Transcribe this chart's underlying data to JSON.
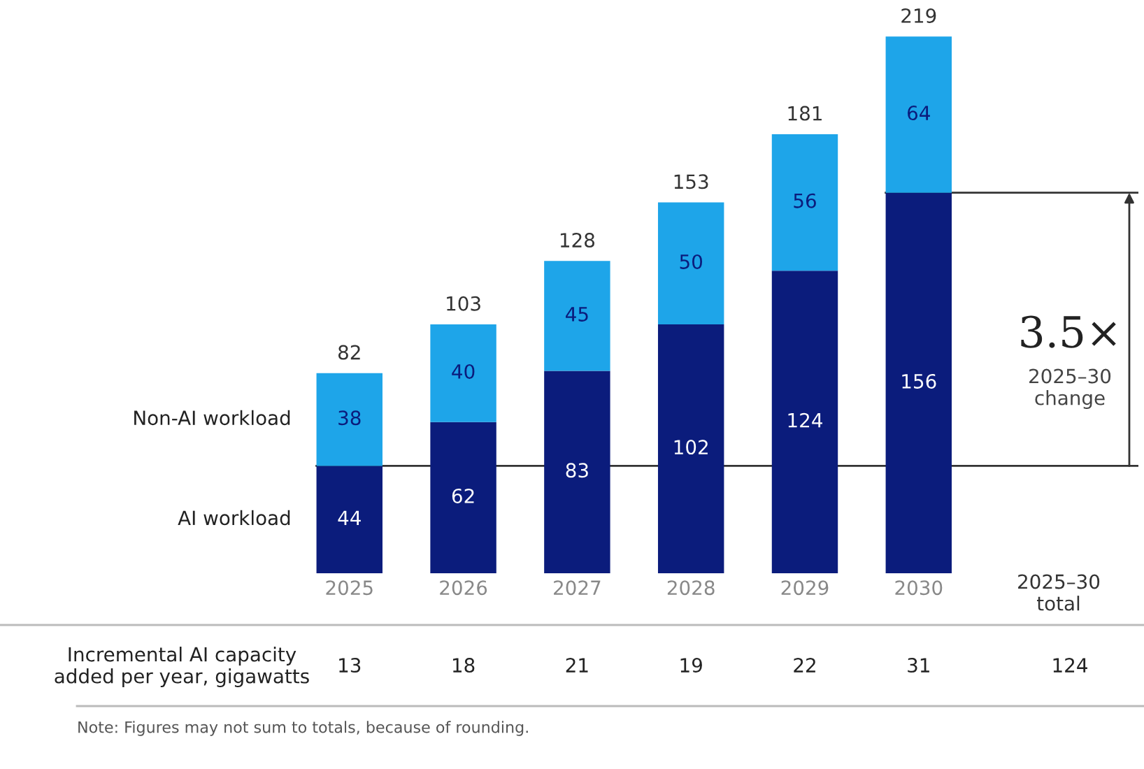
{
  "chart_data": {
    "type": "bar",
    "stacked": true,
    "data_labels": true,
    "legend": false,
    "categories": [
      "2025",
      "2026",
      "2027",
      "2028",
      "2029",
      "2030"
    ],
    "series": [
      {
        "name": "AI workload",
        "color": "#0b1c7c",
        "values": [
          44,
          62,
          83,
          102,
          124,
          156
        ]
      },
      {
        "name": "Non-AI workload",
        "color": "#1ea5e9",
        "values": [
          38,
          40,
          45,
          50,
          56,
          64
        ]
      }
    ],
    "totals": [
      "82",
      "103",
      "128",
      "153",
      "181",
      "219"
    ],
    "ref_lines": [
      {
        "axis": "y",
        "value": 44,
        "color": "#333333"
      },
      {
        "axis": "y",
        "value": 156,
        "color": "#333333"
      }
    ],
    "annotations": [
      "Incremental AI capacity\nadded per year, gigawatts",
      "13",
      "18",
      "21",
      "19",
      "22",
      "31",
      "2025–30\ntotal",
      "124",
      "3.5×",
      "2025–30\nchange",
      "Note: Figures may not sum to totals, because of rounding."
    ]
  }
}
